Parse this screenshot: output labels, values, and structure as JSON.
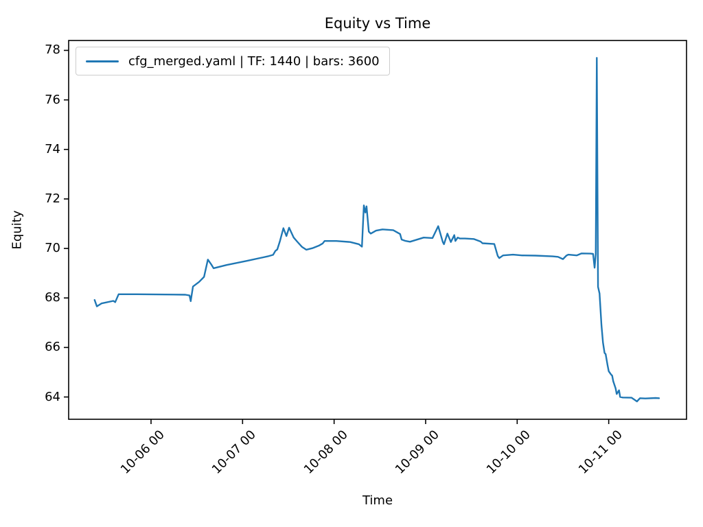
{
  "chart_data": {
    "type": "line",
    "title": "Equity vs Time",
    "xlabel": "Time",
    "ylabel": "Equity",
    "grid": false,
    "legend_position": "upper left",
    "x_encoding": "hours, where 24 = tick '10-06 00' and each tick is +24",
    "xlim": [
      2.4,
      164.4
    ],
    "ylim": [
      63.1,
      78.4
    ],
    "x_ticks": [
      {
        "value": 24,
        "label": "10-06 00"
      },
      {
        "value": 48,
        "label": "10-07 00"
      },
      {
        "value": 72,
        "label": "10-08 00"
      },
      {
        "value": 96,
        "label": "10-09 00"
      },
      {
        "value": 120,
        "label": "10-10 00"
      },
      {
        "value": 144,
        "label": "10-11 00"
      }
    ],
    "y_ticks": [
      64,
      66,
      68,
      70,
      72,
      74,
      76,
      78
    ],
    "colors": {
      "line": "#1f77b4",
      "spine": "#000000"
    },
    "series": [
      {
        "name": "cfg_merged.yaml | TF: 1440 | bars: 3600",
        "color": "#1f77b4",
        "points": [
          [
            9.2,
            67.92
          ],
          [
            9.8,
            67.66
          ],
          [
            11.0,
            67.78
          ],
          [
            14.1,
            67.88
          ],
          [
            14.6,
            67.83
          ],
          [
            15.5,
            68.15
          ],
          [
            20.4,
            68.15
          ],
          [
            33.0,
            68.13
          ],
          [
            34.1,
            68.1
          ],
          [
            34.4,
            67.87
          ],
          [
            35.0,
            68.46
          ],
          [
            36.6,
            68.65
          ],
          [
            37.9,
            68.85
          ],
          [
            38.9,
            69.55
          ],
          [
            39.8,
            69.35
          ],
          [
            40.4,
            69.2
          ],
          [
            43.8,
            69.33
          ],
          [
            49.2,
            69.5
          ],
          [
            54.6,
            69.68
          ],
          [
            56.0,
            69.74
          ],
          [
            56.6,
            69.9
          ],
          [
            57.1,
            69.96
          ],
          [
            57.8,
            70.3
          ],
          [
            58.7,
            70.82
          ],
          [
            59.5,
            70.5
          ],
          [
            60.2,
            70.84
          ],
          [
            61.4,
            70.44
          ],
          [
            62.3,
            70.28
          ],
          [
            63.6,
            70.06
          ],
          [
            64.7,
            69.95
          ],
          [
            66.3,
            70.01
          ],
          [
            68.1,
            70.12
          ],
          [
            69.0,
            70.2
          ],
          [
            69.5,
            70.3
          ],
          [
            72.6,
            70.3
          ],
          [
            76.2,
            70.26
          ],
          [
            78.5,
            70.17
          ],
          [
            79.3,
            70.07
          ],
          [
            79.8,
            71.74
          ],
          [
            80.2,
            71.45
          ],
          [
            80.5,
            71.7
          ],
          [
            81.1,
            70.68
          ],
          [
            81.6,
            70.6
          ],
          [
            83.0,
            70.72
          ],
          [
            84.7,
            70.77
          ],
          [
            87.5,
            70.74
          ],
          [
            89.3,
            70.58
          ],
          [
            89.7,
            70.36
          ],
          [
            90.6,
            70.31
          ],
          [
            91.9,
            70.27
          ],
          [
            95.5,
            70.44
          ],
          [
            97.8,
            70.42
          ],
          [
            99.3,
            70.9
          ],
          [
            100.5,
            70.26
          ],
          [
            100.8,
            70.17
          ],
          [
            101.7,
            70.6
          ],
          [
            102.6,
            70.26
          ],
          [
            103.5,
            70.54
          ],
          [
            103.8,
            70.3
          ],
          [
            104.4,
            70.44
          ],
          [
            105.0,
            70.4
          ],
          [
            106.3,
            70.4
          ],
          [
            108.6,
            70.38
          ],
          [
            110.4,
            70.28
          ],
          [
            110.9,
            70.21
          ],
          [
            114.0,
            70.18
          ],
          [
            114.9,
            69.7
          ],
          [
            115.3,
            69.61
          ],
          [
            116.3,
            69.72
          ],
          [
            118.9,
            69.75
          ],
          [
            121.2,
            69.72
          ],
          [
            124.8,
            69.71
          ],
          [
            129.3,
            69.68
          ],
          [
            130.7,
            69.66
          ],
          [
            132.0,
            69.57
          ],
          [
            132.9,
            69.71
          ],
          [
            133.4,
            69.75
          ],
          [
            135.6,
            69.72
          ],
          [
            136.9,
            69.8
          ],
          [
            139.2,
            69.79
          ],
          [
            139.9,
            69.78
          ],
          [
            140.3,
            69.22
          ],
          [
            140.6,
            69.78
          ],
          [
            140.87,
            77.7
          ],
          [
            141.2,
            68.45
          ],
          [
            141.6,
            68.18
          ],
          [
            142.1,
            66.9
          ],
          [
            142.5,
            66.2
          ],
          [
            142.9,
            65.78
          ],
          [
            143.2,
            65.73
          ],
          [
            143.7,
            65.28
          ],
          [
            144.0,
            65.04
          ],
          [
            144.6,
            64.91
          ],
          [
            144.9,
            64.86
          ],
          [
            145.2,
            64.63
          ],
          [
            145.8,
            64.35
          ],
          [
            146.1,
            64.12
          ],
          [
            146.7,
            64.27
          ],
          [
            147.0,
            64.0
          ],
          [
            147.7,
            63.98
          ],
          [
            150.0,
            63.97
          ],
          [
            151.4,
            63.82
          ],
          [
            152.2,
            63.95
          ],
          [
            153.6,
            63.94
          ],
          [
            156.3,
            63.96
          ],
          [
            157.2,
            63.95
          ]
        ]
      }
    ]
  }
}
